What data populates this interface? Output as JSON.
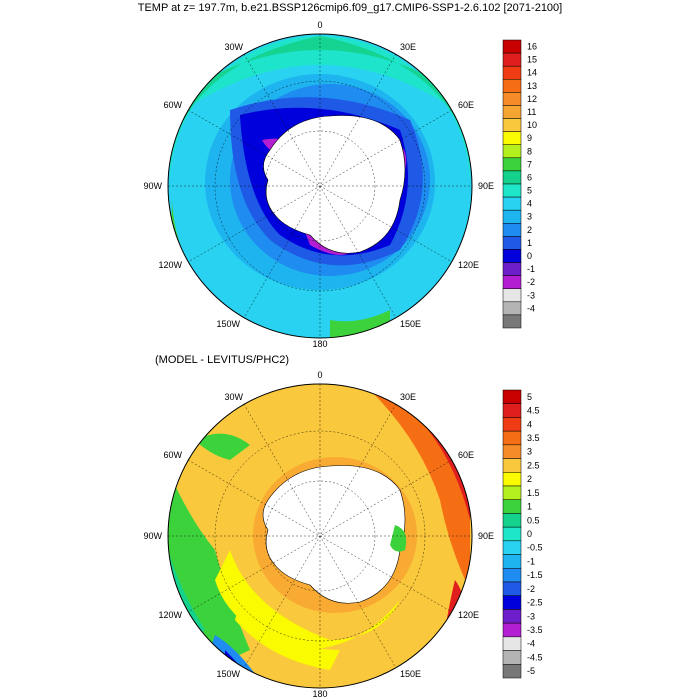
{
  "title": "TEMP at z= 197.7m, b.e21.BSSP126cmip6.f09_g17.CMIP6-SSP1-2.6.102 [2071-2100]",
  "panel2_title": "(MODEL - LEVITUS/PHC2)",
  "lon_labels": [
    "0",
    "30E",
    "60E",
    "90E",
    "120E",
    "150E",
    "180",
    "150W",
    "120W",
    "90W",
    "60W",
    "30W"
  ],
  "colorbar1": {
    "labels": [
      "16",
      "15",
      "14",
      "13",
      "12",
      "11",
      "10",
      "9",
      "8",
      "7",
      "6",
      "5",
      "4",
      "3",
      "2",
      "1",
      "0",
      "-1",
      "-2",
      "-3",
      "-4"
    ],
    "colors": [
      "#c80000",
      "#e11e1e",
      "#f03c14",
      "#f56e14",
      "#f58c28",
      "#f5a532",
      "#fac83c",
      "#fafa00",
      "#b4f01e",
      "#3cd23c",
      "#14d28c",
      "#1ee6c8",
      "#28d2f0",
      "#1eb4f0",
      "#1e8cf0",
      "#1e5ae6",
      "#0000dc",
      "#6e1ec8",
      "#b41ed2",
      "#e6e6e6",
      "#b4b4b4",
      "#787878"
    ]
  },
  "colorbar2": {
    "labels": [
      "5",
      "4.5",
      "4",
      "3.5",
      "3",
      "2.5",
      "2",
      "1.5",
      "1",
      "0.5",
      "0",
      "-0.5",
      "-1",
      "-1.5",
      "-2",
      "-2.5",
      "-3",
      "-3.5",
      "-4",
      "-4.5",
      "-5"
    ],
    "colors": [
      "#c80000",
      "#e11e1e",
      "#f03c14",
      "#f56e14",
      "#f58c28",
      "#fac83c",
      "#fafa00",
      "#b4f01e",
      "#3cd23c",
      "#14d28c",
      "#1ee6c8",
      "#28d2f0",
      "#1eb4f0",
      "#1e8cf0",
      "#1e5ae6",
      "#0000dc",
      "#6e1ec8",
      "#b41ed2",
      "#e6e6e6",
      "#b4b4b4",
      "#787878"
    ]
  }
}
